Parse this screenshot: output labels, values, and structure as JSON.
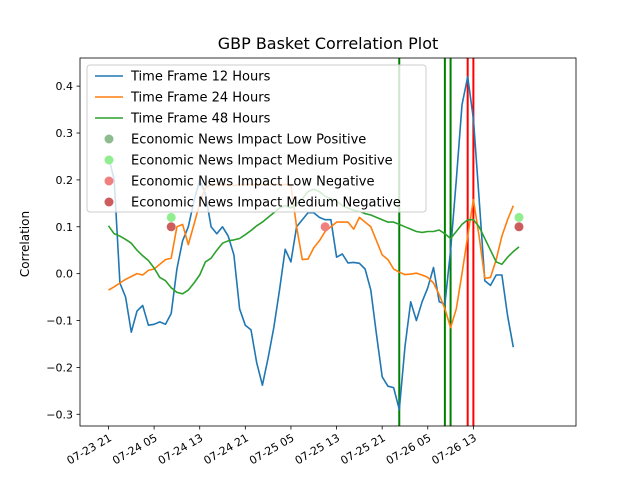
{
  "chart_data": {
    "type": "line",
    "title": "GBP Basket Correlation Plot",
    "xlabel": "",
    "ylabel": "Correlation",
    "xlim": [
      "07-23 16:00",
      "07-27 07:00"
    ],
    "ylim": [
      -0.325,
      0.46
    ],
    "yticks": [
      -0.3,
      -0.2,
      -0.1,
      0.0,
      0.1,
      0.2,
      0.3,
      0.4
    ],
    "ytick_labels": [
      "−0.3",
      "−0.2",
      "−0.1",
      "0.0",
      "0.1",
      "0.2",
      "0.3",
      "0.4"
    ],
    "xticks": [
      "07-23 21:00",
      "07-24 05:00",
      "07-24 13:00",
      "07-24 21:00",
      "07-25 05:00",
      "07-25 13:00",
      "07-25 21:00",
      "07-26 05:00",
      "07-26 13:00"
    ],
    "xtick_labels": [
      "07-23 21",
      "07-24 05",
      "07-24 13",
      "07-24 21",
      "07-25 05",
      "07-25 13",
      "07-25 21",
      "07-26 05",
      "07-26 13"
    ],
    "grid": false,
    "legend_position": "upper-left",
    "series": [
      {
        "name": "Time Frame 12 Hours",
        "color": "#1f77b4",
        "points": [
          [
            "07-23 21:00",
            0.25
          ],
          [
            "07-23 22:00",
            0.2
          ],
          [
            "07-23 23:00",
            -0.02
          ],
          [
            "07-24 00:00",
            -0.05
          ],
          [
            "07-24 01:00",
            -0.125
          ],
          [
            "07-24 02:00",
            -0.08
          ],
          [
            "07-24 03:00",
            -0.068
          ],
          [
            "07-24 04:00",
            -0.11
          ],
          [
            "07-24 05:00",
            -0.108
          ],
          [
            "07-24 06:00",
            -0.103
          ],
          [
            "07-24 07:00",
            -0.108
          ],
          [
            "07-24 08:00",
            -0.085
          ],
          [
            "07-24 09:00",
            0.01
          ],
          [
            "07-24 10:00",
            0.07
          ],
          [
            "07-24 11:00",
            0.1
          ],
          [
            "07-24 12:00",
            0.155
          ],
          [
            "07-24 13:00",
            0.2
          ],
          [
            "07-24 14:00",
            0.17
          ],
          [
            "07-24 15:00",
            0.1
          ],
          [
            "07-24 16:00",
            0.085
          ],
          [
            "07-24 17:00",
            0.1
          ],
          [
            "07-24 18:00",
            0.08
          ],
          [
            "07-24 19:00",
            0.04
          ],
          [
            "07-24 20:00",
            -0.075
          ],
          [
            "07-24 21:00",
            -0.11
          ],
          [
            "07-24 22:00",
            -0.12
          ],
          [
            "07-24 23:00",
            -0.19
          ],
          [
            "07-25 00:00",
            -0.238
          ],
          [
            "07-25 01:00",
            -0.18
          ],
          [
            "07-25 02:00",
            -0.115
          ],
          [
            "07-25 03:00",
            -0.035
          ],
          [
            "07-25 04:00",
            0.052
          ],
          [
            "07-25 05:00",
            0.025
          ],
          [
            "07-25 06:00",
            0.1
          ],
          [
            "07-25 07:00",
            0.115
          ],
          [
            "07-25 08:00",
            0.13
          ],
          [
            "07-25 09:00",
            0.13
          ],
          [
            "07-25 10:00",
            0.12
          ],
          [
            "07-25 11:00",
            0.115
          ],
          [
            "07-25 12:00",
            0.115
          ],
          [
            "07-25 13:00",
            0.035
          ],
          [
            "07-25 14:00",
            0.042
          ],
          [
            "07-25 15:00",
            0.023
          ],
          [
            "07-25 16:00",
            0.024
          ],
          [
            "07-25 17:00",
            0.022
          ],
          [
            "07-25 18:00",
            0.01
          ],
          [
            "07-25 19:00",
            -0.035
          ],
          [
            "07-25 20:00",
            -0.13
          ],
          [
            "07-25 21:00",
            -0.22
          ],
          [
            "07-25 22:00",
            -0.24
          ],
          [
            "07-25 23:00",
            -0.243
          ],
          [
            "07-26 00:00",
            -0.29
          ],
          [
            "07-26 01:00",
            -0.155
          ],
          [
            "07-26 02:00",
            -0.06
          ],
          [
            "07-26 03:00",
            -0.1
          ],
          [
            "07-26 04:00",
            -0.06
          ],
          [
            "07-26 05:00",
            -0.03
          ],
          [
            "07-26 06:00",
            0.013
          ],
          [
            "07-26 07:00",
            -0.06
          ],
          [
            "07-26 08:00",
            -0.065
          ],
          [
            "07-26 09:00",
            0.05
          ],
          [
            "07-26 10:00",
            0.2
          ],
          [
            "07-26 11:00",
            0.36
          ],
          [
            "07-26 12:00",
            0.42
          ],
          [
            "07-26 13:00",
            0.33
          ],
          [
            "07-26 14:00",
            0.16
          ],
          [
            "07-26 15:00",
            -0.015
          ],
          [
            "07-26 16:00",
            -0.025
          ],
          [
            "07-26 17:00",
            -0.003
          ],
          [
            "07-26 18:00",
            -0.003
          ],
          [
            "07-26 19:00",
            -0.09
          ],
          [
            "07-26 20:00",
            -0.157
          ]
        ]
      },
      {
        "name": "Time Frame 24 Hours",
        "color": "#ff7f0e",
        "points": [
          [
            "07-23 21:00",
            -0.035
          ],
          [
            "07-23 22:00",
            -0.028
          ],
          [
            "07-23 23:00",
            -0.02
          ],
          [
            "07-24 00:00",
            -0.012
          ],
          [
            "07-24 01:00",
            -0.006
          ],
          [
            "07-24 02:00",
            0.0
          ],
          [
            "07-24 03:00",
            -0.003
          ],
          [
            "07-24 04:00",
            0.007
          ],
          [
            "07-24 05:00",
            0.01
          ],
          [
            "07-24 06:00",
            0.02
          ],
          [
            "07-24 07:00",
            0.03
          ],
          [
            "07-24 08:00",
            0.033
          ],
          [
            "07-24 09:00",
            0.1
          ],
          [
            "07-24 10:00",
            0.105
          ],
          [
            "07-24 11:00",
            0.062
          ],
          [
            "07-24 12:00",
            0.105
          ],
          [
            "07-24 13:00",
            0.15
          ],
          [
            "07-24 14:00",
            0.183
          ],
          [
            "07-24 15:00",
            0.19
          ],
          [
            "07-24 16:00",
            0.19
          ],
          [
            "07-24 17:00",
            0.19
          ],
          [
            "07-24 18:00",
            0.19
          ],
          [
            "07-24 19:00",
            0.188
          ],
          [
            "07-24 20:00",
            0.19
          ],
          [
            "07-24 21:00",
            0.19
          ],
          [
            "07-24 22:00",
            0.19
          ],
          [
            "07-24 23:00",
            0.19
          ],
          [
            "07-25 00:00",
            0.19
          ],
          [
            "07-25 01:00",
            0.19
          ],
          [
            "07-25 02:00",
            0.19
          ],
          [
            "07-25 03:00",
            0.19
          ],
          [
            "07-25 04:00",
            0.19
          ],
          [
            "07-25 05:00",
            0.19
          ],
          [
            "07-25 06:00",
            0.1
          ],
          [
            "07-25 07:00",
            0.03
          ],
          [
            "07-25 08:00",
            0.031
          ],
          [
            "07-25 09:00",
            0.055
          ],
          [
            "07-25 10:00",
            0.07
          ],
          [
            "07-25 11:00",
            0.09
          ],
          [
            "07-25 12:00",
            0.1
          ],
          [
            "07-25 13:00",
            0.11
          ],
          [
            "07-25 14:00",
            0.11
          ],
          [
            "07-25 15:00",
            0.11
          ],
          [
            "07-25 16:00",
            0.095
          ],
          [
            "07-25 17:00",
            0.12
          ],
          [
            "07-25 18:00",
            0.11
          ],
          [
            "07-25 19:00",
            0.1
          ],
          [
            "07-25 20:00",
            0.07
          ],
          [
            "07-25 21:00",
            0.04
          ],
          [
            "07-25 22:00",
            0.03
          ],
          [
            "07-25 23:00",
            0.01
          ],
          [
            "07-26 00:00",
            0.003
          ],
          [
            "07-26 01:00",
            -0.002
          ],
          [
            "07-26 02:00",
            -0.001
          ],
          [
            "07-26 03:00",
            0.001
          ],
          [
            "07-26 04:00",
            -0.003
          ],
          [
            "07-26 05:00",
            -0.008
          ],
          [
            "07-26 06:00",
            -0.02
          ],
          [
            "07-26 07:00",
            -0.045
          ],
          [
            "07-26 08:00",
            -0.075
          ],
          [
            "07-26 09:00",
            -0.115
          ],
          [
            "07-26 10:00",
            -0.075
          ],
          [
            "07-26 11:00",
            0.0
          ],
          [
            "07-26 12:00",
            0.08
          ],
          [
            "07-26 13:00",
            0.158
          ],
          [
            "07-26 14:00",
            0.08
          ],
          [
            "07-26 15:00",
            -0.01
          ],
          [
            "07-26 16:00",
            -0.008
          ],
          [
            "07-26 17:00",
            0.03
          ],
          [
            "07-26 18:00",
            0.08
          ],
          [
            "07-26 19:00",
            0.115
          ],
          [
            "07-26 20:00",
            0.145
          ]
        ]
      },
      {
        "name": "Time Frame 48 Hours",
        "color": "#2ca02c",
        "points": [
          [
            "07-23 21:00",
            0.102
          ],
          [
            "07-23 22:00",
            0.085
          ],
          [
            "07-23 23:00",
            0.08
          ],
          [
            "07-24 00:00",
            0.073
          ],
          [
            "07-24 01:00",
            0.065
          ],
          [
            "07-24 02:00",
            0.05
          ],
          [
            "07-24 03:00",
            0.038
          ],
          [
            "07-24 04:00",
            0.028
          ],
          [
            "07-24 05:00",
            0.012
          ],
          [
            "07-24 06:00",
            -0.008
          ],
          [
            "07-24 07:00",
            -0.015
          ],
          [
            "07-24 08:00",
            -0.03
          ],
          [
            "07-24 09:00",
            -0.04
          ],
          [
            "07-24 10:00",
            -0.043
          ],
          [
            "07-24 11:00",
            -0.035
          ],
          [
            "07-24 12:00",
            -0.02
          ],
          [
            "07-24 13:00",
            -0.003
          ],
          [
            "07-24 14:00",
            0.025
          ],
          [
            "07-24 15:00",
            0.033
          ],
          [
            "07-24 16:00",
            0.05
          ],
          [
            "07-24 17:00",
            0.065
          ],
          [
            "07-24 18:00",
            0.07
          ],
          [
            "07-24 19:00",
            0.072
          ],
          [
            "07-24 20:00",
            0.075
          ],
          [
            "07-24 21:00",
            0.083
          ],
          [
            "07-24 22:00",
            0.092
          ],
          [
            "07-24 23:00",
            0.102
          ],
          [
            "07-25 00:00",
            0.11
          ],
          [
            "07-25 01:00",
            0.12
          ],
          [
            "07-25 02:00",
            0.13
          ],
          [
            "07-25 03:00",
            0.14
          ],
          [
            "07-25 04:00",
            0.145
          ],
          [
            "07-25 05:00",
            0.14
          ],
          [
            "07-25 06:00",
            0.15
          ],
          [
            "07-25 07:00",
            0.16
          ],
          [
            "07-25 08:00",
            0.175
          ],
          [
            "07-25 09:00",
            0.18
          ],
          [
            "07-25 10:00",
            0.175
          ],
          [
            "07-25 11:00",
            0.165
          ],
          [
            "07-25 12:00",
            0.16
          ],
          [
            "07-25 13:00",
            0.155
          ],
          [
            "07-25 14:00",
            0.145
          ],
          [
            "07-25 15:00",
            0.14
          ],
          [
            "07-25 16:00",
            0.135
          ],
          [
            "07-25 17:00",
            0.133
          ],
          [
            "07-25 18:00",
            0.128
          ],
          [
            "07-25 19:00",
            0.125
          ],
          [
            "07-25 20:00",
            0.12
          ],
          [
            "07-25 21:00",
            0.115
          ],
          [
            "07-25 22:00",
            0.11
          ],
          [
            "07-25 23:00",
            0.11
          ],
          [
            "07-26 00:00",
            0.105
          ],
          [
            "07-26 01:00",
            0.1
          ],
          [
            "07-26 02:00",
            0.095
          ],
          [
            "07-26 03:00",
            0.09
          ],
          [
            "07-26 04:00",
            0.088
          ],
          [
            "07-26 05:00",
            0.09
          ],
          [
            "07-26 06:00",
            0.09
          ],
          [
            "07-26 07:00",
            0.093
          ],
          [
            "07-26 08:00",
            0.085
          ],
          [
            "07-26 09:00",
            0.075
          ],
          [
            "07-26 10:00",
            0.09
          ],
          [
            "07-26 11:00",
            0.105
          ],
          [
            "07-26 12:00",
            0.115
          ],
          [
            "07-26 13:00",
            0.115
          ],
          [
            "07-26 14:00",
            0.1
          ],
          [
            "07-26 15:00",
            0.075
          ],
          [
            "07-26 16:00",
            0.05
          ],
          [
            "07-26 17:00",
            0.025
          ],
          [
            "07-26 18:00",
            0.02
          ],
          [
            "07-26 19:00",
            0.035
          ],
          [
            "07-26 20:00",
            0.047
          ],
          [
            "07-26 21:00",
            0.057
          ]
        ]
      }
    ],
    "markers": [
      {
        "name": "Economic News Impact Low Positive",
        "color": "#8fbc8f",
        "points": []
      },
      {
        "name": "Economic News Impact Medium Positive",
        "color": "#90ee90",
        "points": [
          [
            "07-24 08:00",
            0.12
          ],
          [
            "07-26 21:00",
            0.12
          ]
        ]
      },
      {
        "name": "Economic News Impact Low Negative",
        "color": "#f08080",
        "points": [
          [
            "07-25 11:00",
            0.1
          ]
        ]
      },
      {
        "name": "Economic News Impact Medium Negative",
        "color": "#cd5c5c",
        "points": [
          [
            "07-24 08:00",
            0.1
          ],
          [
            "07-26 21:00",
            0.1
          ]
        ]
      }
    ],
    "vlines": [
      {
        "x": "07-26 00:00",
        "color": "#008000"
      },
      {
        "x": "07-26 08:00",
        "color": "#008000"
      },
      {
        "x": "07-26 09:00",
        "color": "#008000"
      },
      {
        "x": "07-26 12:00",
        "color": "#ff0000"
      },
      {
        "x": "07-26 13:00",
        "color": "#ff0000"
      }
    ]
  }
}
